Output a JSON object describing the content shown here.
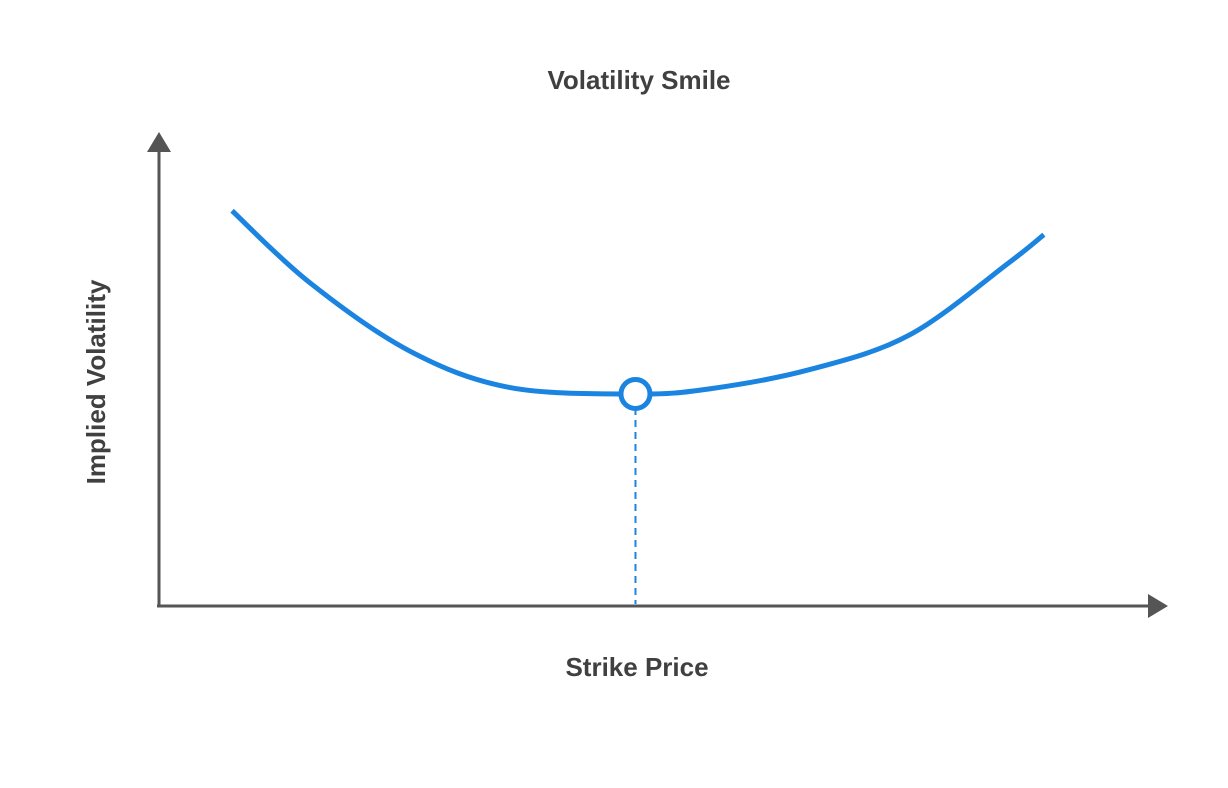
{
  "chart_data": {
    "type": "line",
    "title": "Volatility Smile",
    "xlabel": "Strike Price",
    "ylabel": "Implied Volatility",
    "grid": false,
    "legend": "none",
    "axis_ticks": "none",
    "xlim": [
      0,
      100
    ],
    "ylim": [
      0,
      100
    ],
    "series": [
      {
        "color": "#1a84e0",
        "x": [
          7.3,
          15,
          25,
          35,
          47.6,
          55,
          65,
          75,
          85,
          88.4
        ],
        "y": [
          84.1,
          68.9,
          54.3,
          46.5,
          45.1,
          46.2,
          50.3,
          57.7,
          73.2,
          79.0
        ]
      }
    ],
    "annotations": [
      {
        "type": "marker",
        "style": "hollow-circle",
        "x": 47.6,
        "y": 45.1,
        "color": "#1a84e0",
        "drop_line": "dashed-vertical-to-x-axis"
      }
    ],
    "axis_color": "#555555"
  }
}
